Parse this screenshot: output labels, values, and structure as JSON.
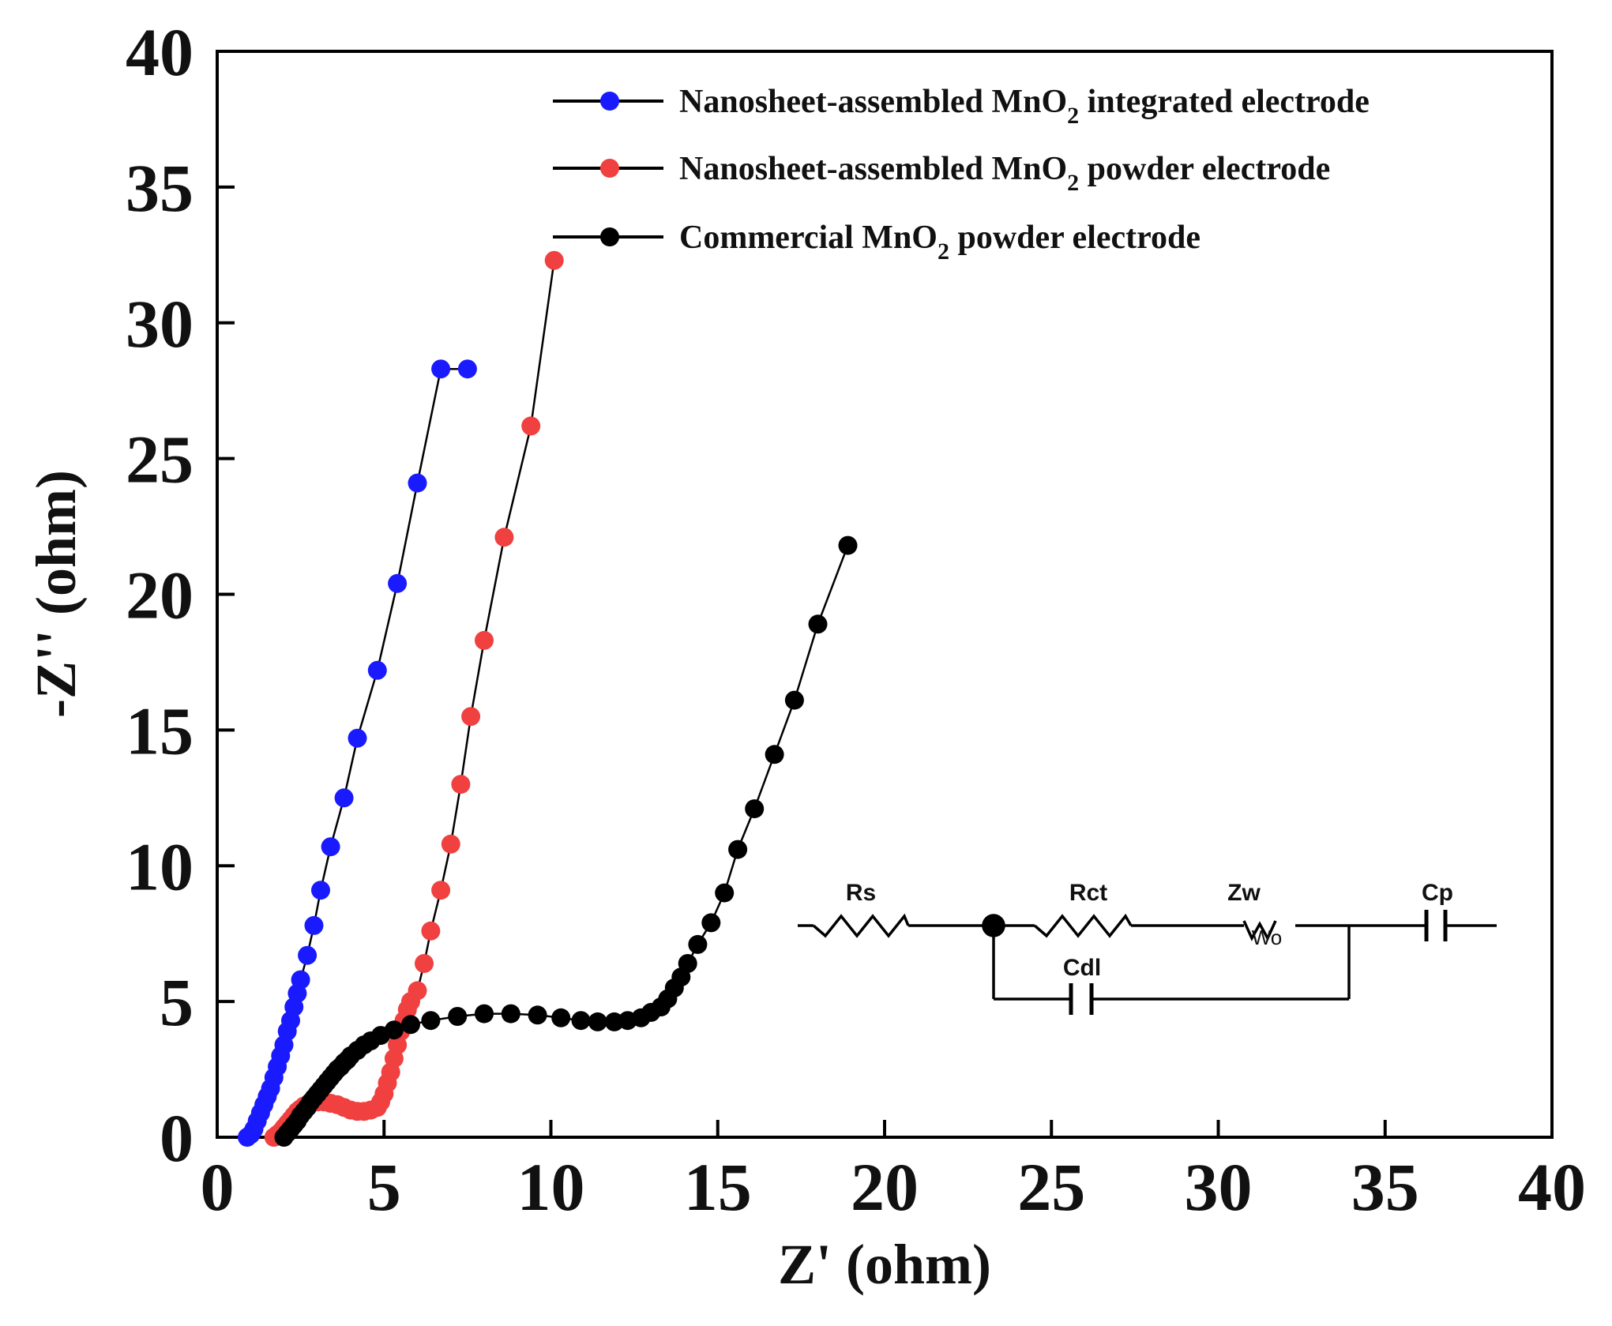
{
  "chart_data": {
    "type": "scatter",
    "title": "",
    "xlabel": "Z' (ohm)",
    "ylabel": "-Z'' (ohm)",
    "xlim": [
      0,
      40
    ],
    "ylim": [
      0,
      40
    ],
    "xticks": [
      "0",
      "5",
      "10",
      "15",
      "20",
      "25",
      "30",
      "35",
      "40"
    ],
    "yticks": [
      "0",
      "5",
      "10",
      "15",
      "20",
      "25",
      "30",
      "35",
      "40"
    ],
    "grid": false,
    "legend_position": "top-right",
    "series": [
      {
        "name": "Nanosheet-assembled MnO2 integrated electrode",
        "legend": {
          "prefix": "Nanosheet-assembled  MnO",
          "sub": "2",
          "suffix": " integrated electrode"
        },
        "color": "#1a1aff",
        "x": [
          0.9,
          1.0,
          1.1,
          1.2,
          1.3,
          1.4,
          1.5,
          1.6,
          1.7,
          1.8,
          1.9,
          2.0,
          2.1,
          2.2,
          2.3,
          2.4,
          2.5,
          2.7,
          2.9,
          3.1,
          3.4,
          3.8,
          4.2,
          4.8,
          5.4,
          6.0,
          6.7,
          7.5
        ],
        "y": [
          0.0,
          0.1,
          0.3,
          0.6,
          0.9,
          1.2,
          1.5,
          1.8,
          2.2,
          2.6,
          3.0,
          3.4,
          3.9,
          4.3,
          4.8,
          5.3,
          5.8,
          6.7,
          7.8,
          9.1,
          10.7,
          12.5,
          14.7,
          17.2,
          20.4,
          24.1,
          28.3,
          28.3
        ]
      },
      {
        "name": "Nanosheet-assembled MnO2 powder electrode",
        "legend": {
          "prefix": "Nanosheet-assembled  MnO",
          "sub": "2",
          "suffix": " powder electrode"
        },
        "color": "#f04040",
        "x": [
          1.7,
          1.8,
          1.9,
          2.0,
          2.1,
          2.2,
          2.3,
          2.4,
          2.5,
          2.6,
          2.7,
          2.8,
          3.0,
          3.2,
          3.4,
          3.6,
          3.8,
          4.0,
          4.2,
          4.4,
          4.6,
          4.8,
          4.9,
          5.0,
          5.1,
          5.2,
          5.3,
          5.4,
          5.5,
          5.6,
          5.7,
          5.8,
          6.0,
          6.2,
          6.4,
          6.7,
          7.0,
          7.3,
          7.6,
          8.0,
          8.6,
          9.4,
          10.1
        ],
        "y": [
          0.0,
          0.1,
          0.2,
          0.35,
          0.5,
          0.65,
          0.8,
          0.95,
          1.05,
          1.15,
          1.2,
          1.25,
          1.3,
          1.3,
          1.25,
          1.2,
          1.1,
          1.0,
          0.95,
          0.95,
          1.0,
          1.1,
          1.3,
          1.6,
          2.0,
          2.4,
          2.9,
          3.4,
          3.9,
          4.3,
          4.7,
          5.0,
          5.4,
          6.4,
          7.6,
          9.1,
          10.8,
          13.0,
          15.5,
          18.3,
          22.1,
          26.2,
          32.3
        ]
      },
      {
        "name": "Commercial MnO2 powder electrode",
        "legend": {
          "prefix": "Commercial MnO",
          "sub": "2",
          "suffix": " powder electrode"
        },
        "color": "#000000",
        "x": [
          2.0,
          2.1,
          2.2,
          2.3,
          2.4,
          2.5,
          2.6,
          2.7,
          2.8,
          2.9,
          3.0,
          3.1,
          3.2,
          3.3,
          3.4,
          3.5,
          3.6,
          3.7,
          3.8,
          3.9,
          4.0,
          4.2,
          4.4,
          4.6,
          4.9,
          5.3,
          5.8,
          6.4,
          7.2,
          8.0,
          8.8,
          9.6,
          10.3,
          10.9,
          11.4,
          11.9,
          12.3,
          12.7,
          13.0,
          13.3,
          13.5,
          13.7,
          13.9,
          14.1,
          14.4,
          14.8,
          15.2,
          15.6,
          16.1,
          16.7,
          17.3,
          18.0,
          18.9
        ],
        "y": [
          0.0,
          0.15,
          0.3,
          0.45,
          0.6,
          0.8,
          0.95,
          1.1,
          1.3,
          1.45,
          1.6,
          1.75,
          1.9,
          2.05,
          2.2,
          2.35,
          2.5,
          2.6,
          2.75,
          2.85,
          3.0,
          3.2,
          3.4,
          3.55,
          3.75,
          3.95,
          4.15,
          4.3,
          4.45,
          4.55,
          4.55,
          4.5,
          4.4,
          4.3,
          4.25,
          4.25,
          4.3,
          4.4,
          4.6,
          4.8,
          5.1,
          5.5,
          5.9,
          6.4,
          7.1,
          7.9,
          9.0,
          10.6,
          12.1,
          14.1,
          16.1,
          18.9,
          21.8
        ]
      }
    ],
    "inset": {
      "type": "equivalent-circuit",
      "labels": {
        "rs": "Rs",
        "rct": "Rct",
        "zw": "Zw",
        "wo": "Wo",
        "cp": "Cp",
        "cdl": "Cdl"
      }
    }
  }
}
